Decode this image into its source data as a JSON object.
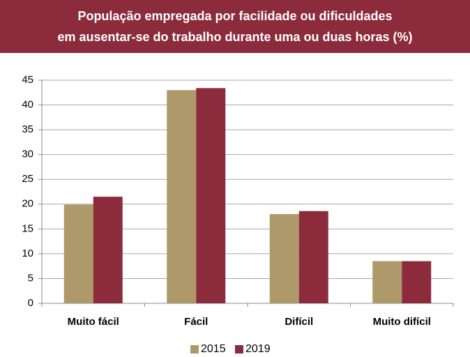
{
  "chart_data": {
    "type": "bar",
    "title": [
      "População empregada por facilidade ou dificuldades",
      "em ausentar-se do trabalho durante uma ou duas horas (%)"
    ],
    "categories": [
      "Muito fácil",
      "Fácil",
      "Difícil",
      "Muito difícil"
    ],
    "series": [
      {
        "name": "2015",
        "color": "#ae996a",
        "values": [
          19.9,
          43.0,
          18.0,
          8.5
        ]
      },
      {
        "name": "2019",
        "color": "#8b2b3b",
        "values": [
          21.5,
          43.4,
          18.6,
          8.5
        ]
      }
    ],
    "ylim": [
      0,
      45
    ],
    "yticks": [
      0,
      5,
      10,
      15,
      20,
      25,
      30,
      35,
      40,
      45
    ],
    "grid": true,
    "legend": "bottom"
  }
}
